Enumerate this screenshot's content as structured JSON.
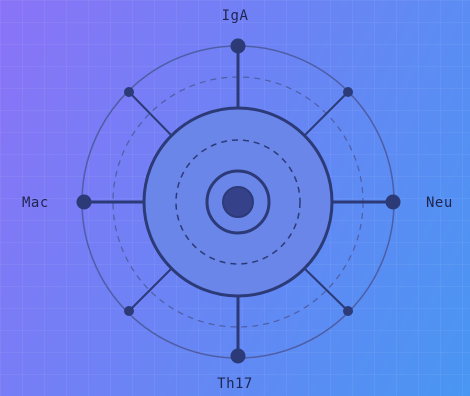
{
  "diagram": {
    "labels": {
      "top": "IgA",
      "right": "Neu",
      "bottom": "Th17",
      "left": "Mac"
    }
  },
  "colors": {
    "background_start": "#8a73f7",
    "background_end": "#4996f2",
    "stroke": "#2c3a78",
    "outer_ring": "#4e5ea6",
    "inner_disk_fill": "#6a86e8",
    "core_fill": "#35428a",
    "text": "#1f2550"
  }
}
